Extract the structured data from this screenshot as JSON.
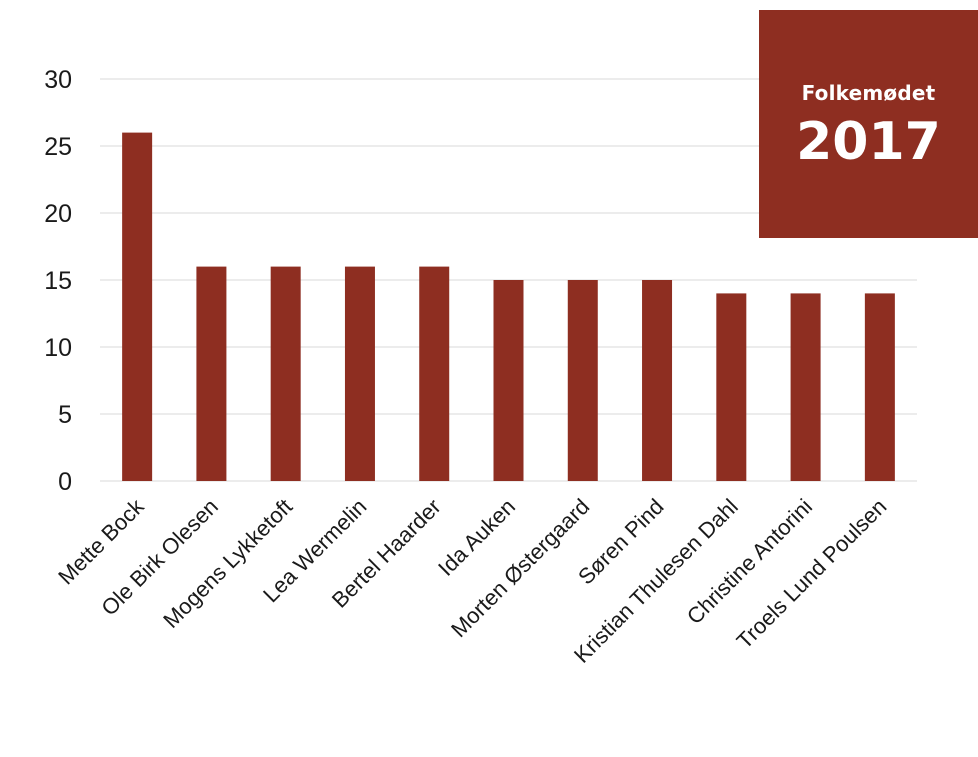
{
  "badge": {
    "event": "Folkemødet",
    "year": "2017"
  },
  "colors": {
    "bar": "#8e2e21",
    "badge_background": "#8e2e21",
    "grid": "#d9d9d9",
    "text": "#1a1a1a"
  },
  "chart_data": {
    "type": "bar",
    "title": "",
    "xlabel": "",
    "ylabel": "",
    "categories": [
      "Mette Bock",
      "Ole Birk Olesen",
      "Mogens Lykketoft",
      "Lea Wermelin",
      "Bertel Haarder",
      "Ida Auken",
      "Morten Østergaard",
      "Søren Pind",
      "Kristian Thulesen Dahl",
      "Christine Antorini",
      "Troels Lund Poulsen"
    ],
    "values": [
      26,
      16,
      16,
      16,
      16,
      15,
      15,
      15,
      14,
      14,
      14
    ],
    "ylim": [
      0,
      30
    ],
    "yticks": [
      0,
      5,
      10,
      15,
      20,
      25,
      30
    ],
    "grid": true,
    "legend": "none"
  }
}
